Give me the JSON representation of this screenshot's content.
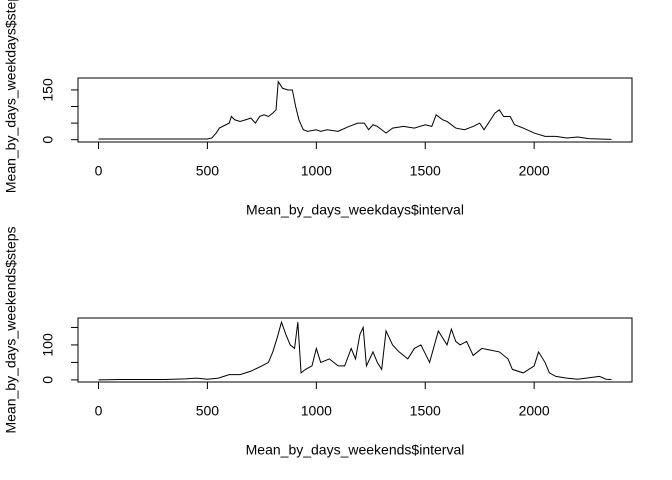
{
  "chart_data": [
    {
      "type": "line",
      "xlabel": "Mean_by_days_weekdays$interval",
      "ylabel": "Mean_by_days_weekdays$steps",
      "x": [
        0,
        100,
        200,
        300,
        400,
        500,
        520,
        540,
        555,
        600,
        610,
        625,
        650,
        700,
        720,
        740,
        760,
        780,
        800,
        815,
        825,
        835,
        845,
        870,
        890,
        905,
        920,
        940,
        960,
        1000,
        1020,
        1050,
        1100,
        1150,
        1190,
        1220,
        1240,
        1260,
        1280,
        1300,
        1320,
        1350,
        1400,
        1450,
        1500,
        1530,
        1550,
        1580,
        1600,
        1640,
        1680,
        1720,
        1750,
        1770,
        1800,
        1820,
        1840,
        1860,
        1890,
        1910,
        1950,
        2000,
        2050,
        2100,
        2150,
        2200,
        2250,
        2300,
        2355
      ],
      "series": [
        {
          "color": "#000000",
          "values": [
            2,
            2,
            2,
            2,
            2,
            2,
            5,
            20,
            35,
            50,
            70,
            60,
            55,
            65,
            50,
            70,
            75,
            70,
            80,
            90,
            175,
            165,
            155,
            150,
            150,
            100,
            60,
            30,
            25,
            30,
            25,
            30,
            25,
            40,
            50,
            50,
            30,
            45,
            40,
            30,
            20,
            35,
            40,
            35,
            45,
            40,
            75,
            60,
            55,
            35,
            30,
            40,
            50,
            30,
            60,
            80,
            90,
            70,
            70,
            45,
            35,
            20,
            10,
            10,
            5,
            8,
            3,
            2,
            1
          ]
        }
      ],
      "xlim": [
        -94.2,
        2449.2
      ],
      "xticks": [
        0,
        500,
        1000,
        1500,
        2000
      ],
      "ylim": [
        -7,
        186
      ],
      "yticks": [
        0,
        {
          "value": 50,
          "label": null
        },
        {
          "value": 100,
          "label": null
        },
        150
      ]
    },
    {
      "type": "line",
      "xlabel": "Mean_by_days_weekends$interval",
      "ylabel": "Mean_by_days_weekends$steps",
      "x": [
        0,
        100,
        300,
        400,
        450,
        500,
        550,
        600,
        650,
        700,
        750,
        780,
        800,
        820,
        840,
        860,
        880,
        900,
        915,
        930,
        950,
        980,
        1000,
        1020,
        1060,
        1100,
        1130,
        1160,
        1180,
        1200,
        1215,
        1230,
        1260,
        1280,
        1300,
        1320,
        1350,
        1380,
        1420,
        1450,
        1480,
        1520,
        1560,
        1600,
        1620,
        1640,
        1660,
        1690,
        1720,
        1760,
        1800,
        1840,
        1880,
        1900,
        1950,
        2000,
        2020,
        2050,
        2070,
        2100,
        2150,
        2200,
        2300,
        2330,
        2355
      ],
      "series": [
        {
          "color": "#000000",
          "values": [
            0,
            1,
            1,
            3,
            5,
            2,
            5,
            15,
            15,
            25,
            40,
            50,
            80,
            120,
            165,
            130,
            100,
            90,
            165,
            20,
            30,
            40,
            90,
            50,
            60,
            40,
            40,
            90,
            60,
            130,
            150,
            40,
            80,
            50,
            30,
            140,
            100,
            80,
            60,
            90,
            100,
            50,
            140,
            100,
            145,
            110,
            100,
            110,
            70,
            90,
            85,
            80,
            60,
            30,
            20,
            40,
            80,
            50,
            20,
            10,
            5,
            2,
            10,
            2,
            1
          ]
        }
      ],
      "xlim": [
        -94.2,
        2449.2
      ],
      "xticks": [
        0,
        500,
        1000,
        1500,
        2000
      ],
      "ylim": [
        -6,
        177
      ],
      "yticks": [
        0,
        {
          "value": 50,
          "label": null
        },
        100,
        {
          "value": 150,
          "label": null
        }
      ]
    }
  ]
}
